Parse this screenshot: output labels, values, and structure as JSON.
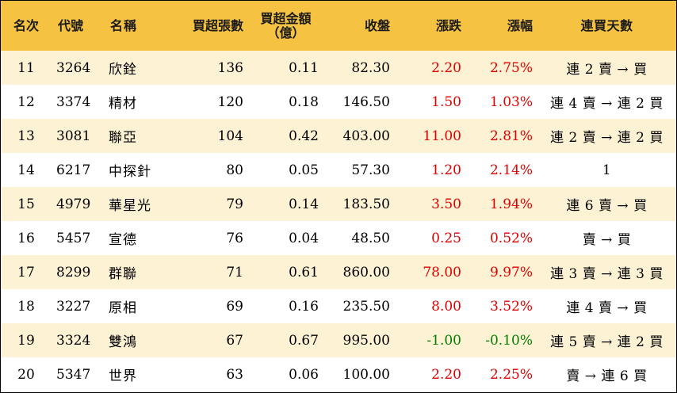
{
  "colors": {
    "header_bg": "#f5c242",
    "row_odd_bg": "#fdf2d4",
    "row_even_bg": "#ffffff",
    "up": "#e00000",
    "down": "#008000"
  },
  "headers": {
    "rank": "名次",
    "code": "代號",
    "name": "名稱",
    "net_buy_lots": "買超張數",
    "net_buy_amount_line1": "買超金額",
    "net_buy_amount_line2": "（億）",
    "close": "收盤",
    "change": "漲跌",
    "change_pct": "漲幅",
    "consecutive_days": "連買天數"
  },
  "rows": [
    {
      "rank": "11",
      "code": "3264",
      "name": "欣銓",
      "net_buy_lots": "136",
      "net_buy_amount": "0.11",
      "close": "82.30",
      "change": "2.20",
      "change_pct": "2.75%",
      "consecutive_days": "連 2 賣 → 買",
      "direction": "up"
    },
    {
      "rank": "12",
      "code": "3374",
      "name": "精材",
      "net_buy_lots": "120",
      "net_buy_amount": "0.18",
      "close": "146.50",
      "change": "1.50",
      "change_pct": "1.03%",
      "consecutive_days": "連 4 賣 → 連 2 買",
      "direction": "up"
    },
    {
      "rank": "13",
      "code": "3081",
      "name": "聯亞",
      "net_buy_lots": "104",
      "net_buy_amount": "0.42",
      "close": "403.00",
      "change": "11.00",
      "change_pct": "2.81%",
      "consecutive_days": "連 2 賣 → 連 2 買",
      "direction": "up"
    },
    {
      "rank": "14",
      "code": "6217",
      "name": "中探針",
      "net_buy_lots": "80",
      "net_buy_amount": "0.05",
      "close": "57.30",
      "change": "1.20",
      "change_pct": "2.14%",
      "consecutive_days": "1",
      "direction": "up"
    },
    {
      "rank": "15",
      "code": "4979",
      "name": "華星光",
      "net_buy_lots": "79",
      "net_buy_amount": "0.14",
      "close": "183.50",
      "change": "3.50",
      "change_pct": "1.94%",
      "consecutive_days": "連 6 賣 → 買",
      "direction": "up"
    },
    {
      "rank": "16",
      "code": "5457",
      "name": "宣德",
      "net_buy_lots": "76",
      "net_buy_amount": "0.04",
      "close": "48.50",
      "change": "0.25",
      "change_pct": "0.52%",
      "consecutive_days": "賣 → 買",
      "direction": "up"
    },
    {
      "rank": "17",
      "code": "8299",
      "name": "群聯",
      "net_buy_lots": "71",
      "net_buy_amount": "0.61",
      "close": "860.00",
      "change": "78.00",
      "change_pct": "9.97%",
      "consecutive_days": "連 3 賣 → 連 3 買",
      "direction": "up"
    },
    {
      "rank": "18",
      "code": "3227",
      "name": "原相",
      "net_buy_lots": "69",
      "net_buy_amount": "0.16",
      "close": "235.50",
      "change": "8.00",
      "change_pct": "3.52%",
      "consecutive_days": "連 4 賣 → 買",
      "direction": "up"
    },
    {
      "rank": "19",
      "code": "3324",
      "name": "雙鴻",
      "net_buy_lots": "67",
      "net_buy_amount": "0.67",
      "close": "995.00",
      "change": "-1.00",
      "change_pct": "-0.10%",
      "consecutive_days": "連 5 賣 → 連 2 買",
      "direction": "down"
    },
    {
      "rank": "20",
      "code": "5347",
      "name": "世界",
      "net_buy_lots": "63",
      "net_buy_amount": "0.06",
      "close": "100.00",
      "change": "2.20",
      "change_pct": "2.25%",
      "consecutive_days": "賣 → 連 6 買",
      "direction": "up"
    }
  ]
}
